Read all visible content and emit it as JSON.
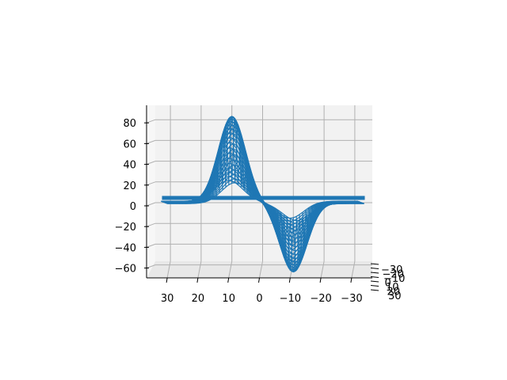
{
  "chart_data": {
    "type": "surface-wireframe-3d",
    "title": "",
    "xlabel": "",
    "ylabel": "",
    "zlabel": "",
    "x_ticks": [
      "30",
      "20",
      "10",
      "0",
      "−10",
      "−20",
      "−30"
    ],
    "y_ticks": [
      "−30",
      "−20",
      "−10",
      "0",
      "10",
      "20",
      "30"
    ],
    "z_ticks": [
      "80",
      "60",
      "40",
      "20",
      "0",
      "−20",
      "−40",
      "−60"
    ],
    "x_range": [
      30,
      -30
    ],
    "z_range": [
      -70,
      85
    ],
    "grid": true,
    "series": [
      {
        "color": "#1f77b4",
        "peak": {
          "x": 10,
          "z": 83
        },
        "trough": {
          "x": -10,
          "z": -67
        },
        "baseline_z": 0
      }
    ]
  }
}
